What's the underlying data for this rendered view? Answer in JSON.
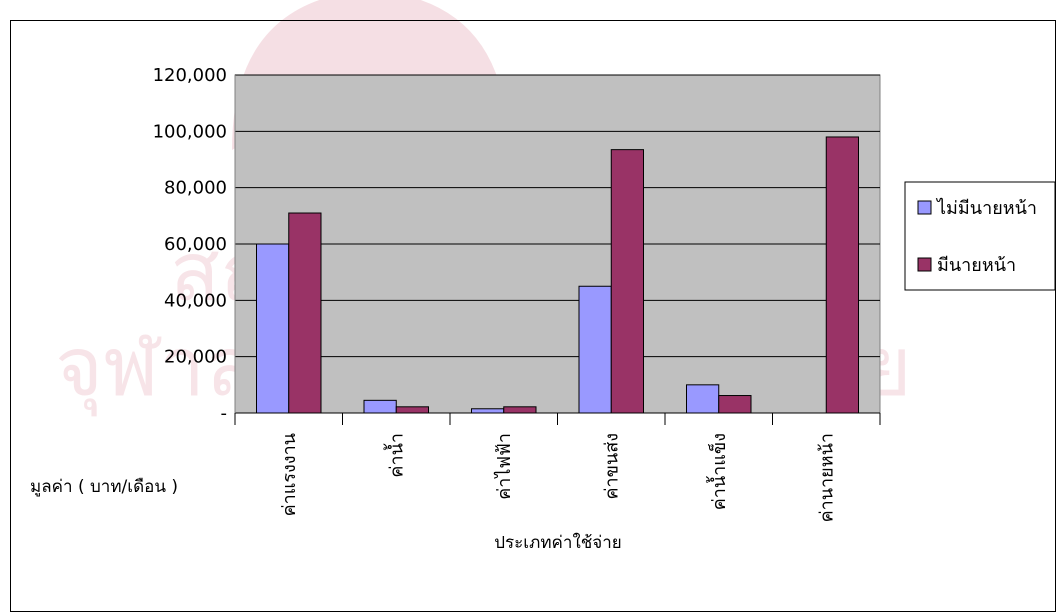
{
  "colors": {
    "plot_background": "#c0c0c0",
    "series_1": "#9999ff",
    "series_2": "#993366",
    "watermark": "#b4002a"
  },
  "chart_data": {
    "type": "bar",
    "title": "",
    "xlabel": "ประเภทค่าใช้จ่าย",
    "ylabel": "มูลค่า ( บาท/เดือน )",
    "ylim": [
      0,
      120000
    ],
    "grid": true,
    "legend_position": "right",
    "y_tick_labels": [
      "-",
      "20,000",
      "40,000",
      "60,000",
      "80,000",
      "100,000",
      "120,000"
    ],
    "categories": [
      "ค่าแรงงาน",
      "ค่าน้ำ",
      "ค่าไฟฟ้า",
      "ค่าขนส่ง",
      "ค่าน้ำแข็ง",
      "ค่านายหน้า"
    ],
    "series": [
      {
        "name": "ไม่มีนายหน้า",
        "values": [
          60000,
          4500,
          1500,
          45000,
          10000,
          0
        ]
      },
      {
        "name": "มีนายหน้า",
        "values": [
          71000,
          2200,
          2200,
          93500,
          6200,
          98000
        ]
      }
    ]
  },
  "watermark": {
    "line_1": "สถาบันวิทยบริการ",
    "line_2": "จุฬาลงกรณ์มหาวิทยาลัย"
  }
}
